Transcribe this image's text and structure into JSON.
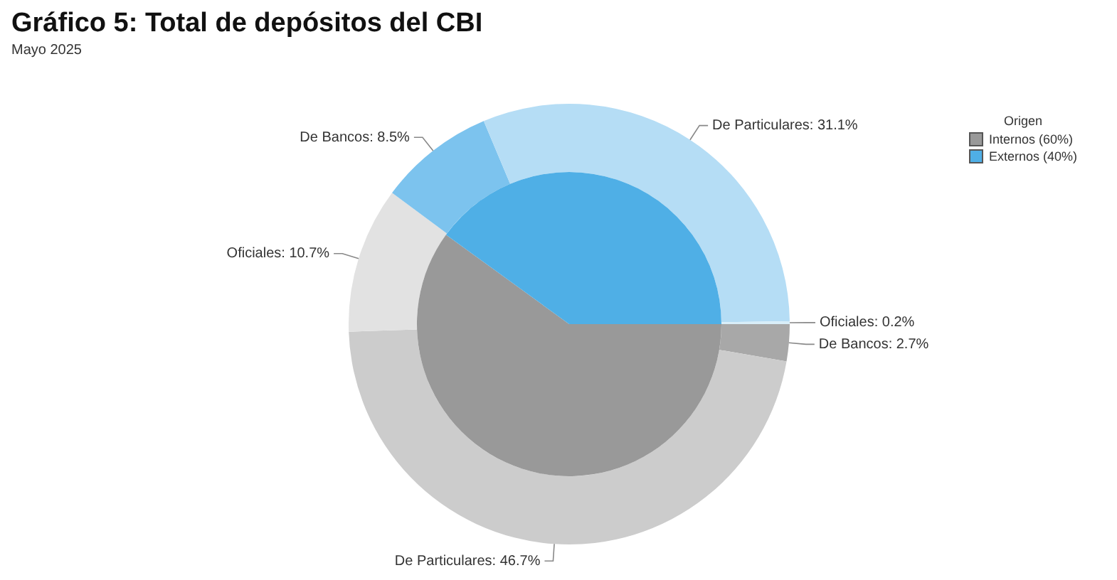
{
  "chart_data": [
    {
      "type": "pie",
      "legend_title": "Origen",
      "legend": "top right",
      "categories": [
        "Internos (60%)",
        "Externos (40%)"
      ],
      "values": [
        60,
        40
      ],
      "colors": [
        "#999999",
        "#4fafe6"
      ]
    },
    {
      "type": "donut",
      "title": "Gráfico 5: Total de depósitos del CBI",
      "subtitle": "Mayo 2025",
      "categories": [
        "De Bancos: 2.7%",
        "De Particulares: 46.7%",
        "Oficiales: 10.7%",
        "De Bancos: 8.5%",
        "De Particulares: 31.1%",
        "Oficiales: 0.2%"
      ],
      "values": [
        2.7,
        46.7,
        10.7,
        8.5,
        31.1,
        0.2
      ],
      "colors": [
        "#a8a8a8",
        "#cccccc",
        "#e2e2e2",
        "#7cc3ee",
        "#b5ddf5",
        "#d8eef9"
      ]
    }
  ]
}
